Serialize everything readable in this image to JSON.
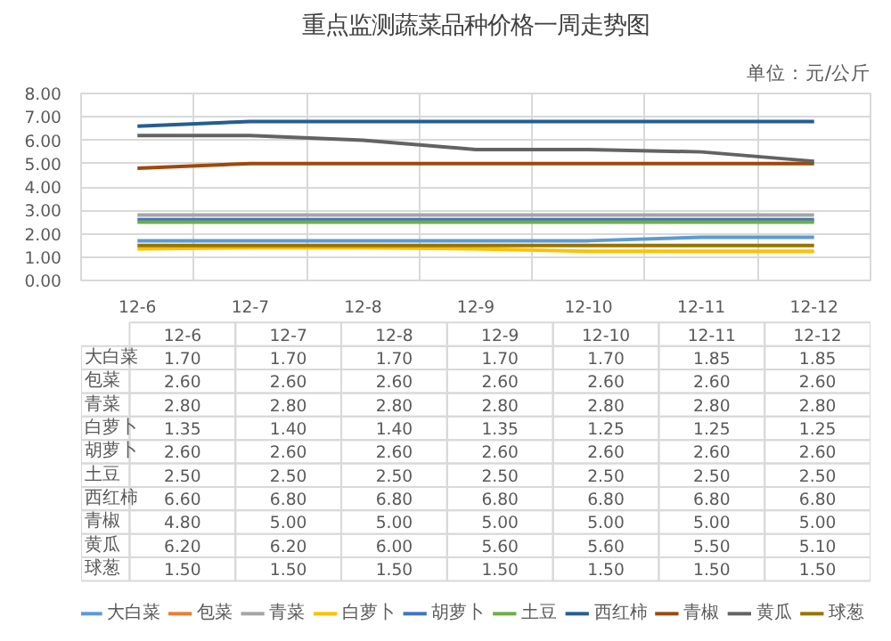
{
  "chart_data": {
    "type": "line",
    "title": "重点监测蔬菜品种价格一周走势图",
    "subtitle": "单位：元/公斤",
    "categories": [
      "12-6",
      "12-7",
      "12-8",
      "12-9",
      "12-10",
      "12-11",
      "12-12"
    ],
    "series": [
      {
        "name": "大白菜",
        "color": "#5b9bd5",
        "values": [
          1.7,
          1.7,
          1.7,
          1.7,
          1.7,
          1.85,
          1.85
        ],
        "value_labels": [
          "1.70",
          "1.70",
          "1.70",
          "1.70",
          "1.70",
          "1.85",
          "1.85"
        ]
      },
      {
        "name": "包菜",
        "color": "#ed7d31",
        "values": [
          null,
          null,
          null,
          null,
          null,
          null,
          null
        ],
        "value_labels": [
          "2.60",
          "2.60",
          "2.60",
          "2.60",
          "2.60",
          "2.60",
          "2.60"
        ]
      },
      {
        "name": "青菜",
        "color": "#a5a5a5",
        "values": [
          2.8,
          2.8,
          2.8,
          2.8,
          2.8,
          2.8,
          2.8
        ],
        "value_labels": [
          "2.80",
          "2.80",
          "2.80",
          "2.80",
          "2.80",
          "2.80",
          "2.80"
        ]
      },
      {
        "name": "白萝卜",
        "color": "#ffc000",
        "values": [
          1.35,
          1.4,
          1.4,
          1.35,
          1.25,
          1.25,
          1.25
        ],
        "value_labels": [
          "1.35",
          "1.40",
          "1.40",
          "1.35",
          "1.25",
          "1.25",
          "1.25"
        ]
      },
      {
        "name": "胡萝卜",
        "color": "#4472c4",
        "values": [
          2.6,
          2.6,
          2.6,
          2.6,
          2.6,
          2.6,
          2.6
        ],
        "value_labels": [
          "2.60",
          "2.60",
          "2.60",
          "2.60",
          "2.60",
          "2.60",
          "2.60"
        ]
      },
      {
        "name": "土豆",
        "color": "#70ad47",
        "values": [
          2.5,
          2.5,
          2.5,
          2.5,
          2.5,
          2.5,
          2.5
        ],
        "value_labels": [
          "2.50",
          "2.50",
          "2.50",
          "2.50",
          "2.50",
          "2.50",
          "2.50"
        ]
      },
      {
        "name": "西红柿",
        "color": "#255e91",
        "values": [
          6.6,
          6.8,
          6.8,
          6.8,
          6.8,
          6.8,
          6.8
        ],
        "value_labels": [
          "6.60",
          "6.80",
          "6.80",
          "6.80",
          "6.80",
          "6.80",
          "6.80"
        ]
      },
      {
        "name": "青椒",
        "color": "#9e480e",
        "values": [
          4.8,
          5.0,
          5.0,
          5.0,
          5.0,
          5.0,
          5.0
        ],
        "value_labels": [
          "4.80",
          "5.00",
          "5.00",
          "5.00",
          "5.00",
          "5.00",
          "5.00"
        ]
      },
      {
        "name": "黄瓜",
        "color": "#636363",
        "values": [
          6.2,
          6.2,
          6.0,
          5.6,
          5.6,
          5.5,
          5.1
        ],
        "value_labels": [
          "6.20",
          "6.20",
          "6.00",
          "5.60",
          "5.60",
          "5.50",
          "5.10"
        ]
      },
      {
        "name": "球葱",
        "color": "#997300",
        "values": [
          1.5,
          1.5,
          1.5,
          1.5,
          1.5,
          1.5,
          1.5
        ],
        "value_labels": [
          "1.50",
          "1.50",
          "1.50",
          "1.50",
          "1.50",
          "1.50",
          "1.50"
        ]
      }
    ],
    "ylim": [
      0,
      8
    ],
    "yticks": [
      {
        "value": 0,
        "label": "0.00"
      },
      {
        "value": 1,
        "label": "1.00"
      },
      {
        "value": 2,
        "label": "2.00"
      },
      {
        "value": 3,
        "label": "3.00"
      },
      {
        "value": 4,
        "label": "4.00"
      },
      {
        "value": 5,
        "label": "5.00"
      },
      {
        "value": 6,
        "label": "6.00"
      },
      {
        "value": 7,
        "label": "7.00"
      },
      {
        "value": 8,
        "label": "8.00"
      }
    ],
    "grid": true,
    "legend": "bottom",
    "line_style": "solid",
    "marker": "none"
  }
}
